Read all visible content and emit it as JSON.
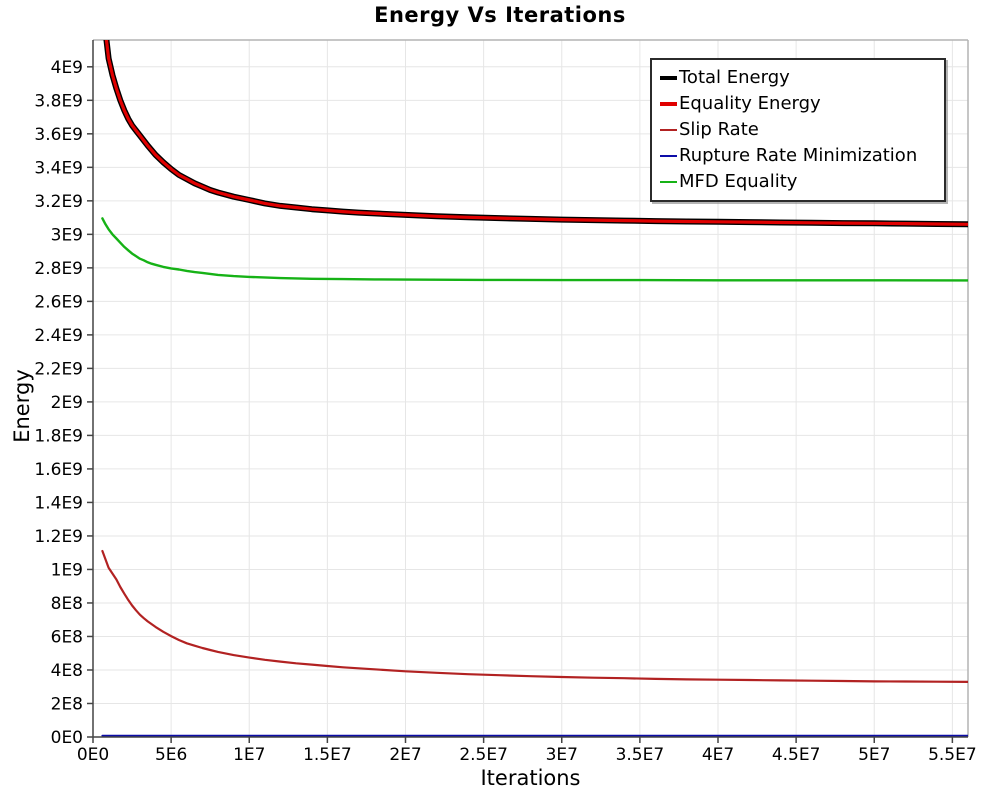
{
  "page": {
    "title": "Energy Vs Iterations"
  },
  "chart_data": {
    "type": "line",
    "title": "Energy Vs Iterations",
    "xlabel": "Iterations",
    "ylabel": "Energy",
    "xlim": [
      0,
      56000000.0
    ],
    "ylim": [
      0,
      4160000000.0
    ],
    "grid": true,
    "legend_position": "top-right",
    "x_ticks": {
      "values": [
        0,
        5000000.0,
        10000000.0,
        15000000.0,
        20000000.0,
        25000000.0,
        30000000.0,
        35000000.0,
        40000000.0,
        45000000.0,
        50000000.0,
        55000000.0
      ],
      "labels": [
        "0E0",
        "5E6",
        "1E7",
        "1.5E7",
        "2E7",
        "2.5E7",
        "3E7",
        "3.5E7",
        "4E7",
        "4.5E7",
        "5E7",
        "5.5E7"
      ]
    },
    "y_ticks": {
      "values": [
        0,
        200000000.0,
        400000000.0,
        600000000.0,
        800000000.0,
        1000000000.0,
        1200000000.0,
        1400000000.0,
        1600000000.0,
        1800000000.0,
        2000000000.0,
        2200000000.0,
        2400000000.0,
        2600000000.0,
        2800000000.0,
        3000000000.0,
        3200000000.0,
        3400000000.0,
        3600000000.0,
        3800000000.0,
        4000000000.0
      ],
      "labels": [
        "0E0",
        "2E8",
        "4E8",
        "6E8",
        "8E8",
        "1E9",
        "1.2E9",
        "1.4E9",
        "1.6E9",
        "1.8E9",
        "2E9",
        "2.2E9",
        "2.4E9",
        "2.6E9",
        "2.8E9",
        "3E9",
        "3.2E9",
        "3.4E9",
        "3.6E9",
        "3.8E9",
        "4E9"
      ]
    },
    "series": [
      {
        "id": "total-energy",
        "name": "Total Energy",
        "color": "#000000",
        "width": 6,
        "legend_thickness": 4,
        "x": [
          500000.0,
          750000.0,
          1000000.0,
          1250000.0,
          1500000.0,
          1750000.0,
          2000000.0,
          2250000.0,
          2500000.0,
          2750000.0,
          3000000.0,
          3500000.0,
          4000000.0,
          4500000.0,
          5000000.0,
          5500000.0,
          6000000.0,
          6500000.0,
          7000000.0,
          7500000.0,
          8000000.0,
          9000000.0,
          10000000.0,
          11000000.0,
          12000000.0,
          13000000.0,
          14000000.0,
          15000000.0,
          16000000.0,
          17000000.0,
          18000000.0,
          20000000.0,
          22000000.0,
          24000000.0,
          26000000.0,
          28000000.0,
          30000000.0,
          32000000.0,
          34000000.0,
          36000000.0,
          38000000.0,
          40000000.0,
          42000000.0,
          44000000.0,
          46000000.0,
          48000000.0,
          50000000.0,
          52000000.0,
          54000000.0,
          56000000.0
        ],
        "y": [
          4500000000.0,
          4250000000.0,
          4050000000.0,
          3950000000.0,
          3870000000.0,
          3800000000.0,
          3740000000.0,
          3690000000.0,
          3650000000.0,
          3620000000.0,
          3590000000.0,
          3530000000.0,
          3475000000.0,
          3430000000.0,
          3390000000.0,
          3355000000.0,
          3330000000.0,
          3305000000.0,
          3285000000.0,
          3265000000.0,
          3250000000.0,
          3225000000.0,
          3205000000.0,
          3185000000.0,
          3170000000.0,
          3160000000.0,
          3150000000.0,
          3143000000.0,
          3136000000.0,
          3130000000.0,
          3125000000.0,
          3116000000.0,
          3108000000.0,
          3102000000.0,
          3097000000.0,
          3092000000.0,
          3088000000.0,
          3085000000.0,
          3082000000.0,
          3079000000.0,
          3077000000.0,
          3075000000.0,
          3073000000.0,
          3071000000.0,
          3069000000.0,
          3067000000.0,
          3066000000.0,
          3064000000.0,
          3062000000.0,
          3060000000.0
        ]
      },
      {
        "id": "equality-energy",
        "name": "Equality Energy",
        "color": "#e00000",
        "width": 3.2,
        "legend_thickness": 4,
        "x": [
          500000.0,
          750000.0,
          1000000.0,
          1250000.0,
          1500000.0,
          1750000.0,
          2000000.0,
          2250000.0,
          2500000.0,
          2750000.0,
          3000000.0,
          3500000.0,
          4000000.0,
          4500000.0,
          5000000.0,
          5500000.0,
          6000000.0,
          6500000.0,
          7000000.0,
          7500000.0,
          8000000.0,
          9000000.0,
          10000000.0,
          11000000.0,
          12000000.0,
          13000000.0,
          14000000.0,
          15000000.0,
          16000000.0,
          17000000.0,
          18000000.0,
          20000000.0,
          22000000.0,
          24000000.0,
          26000000.0,
          28000000.0,
          30000000.0,
          32000000.0,
          34000000.0,
          36000000.0,
          38000000.0,
          40000000.0,
          42000000.0,
          44000000.0,
          46000000.0,
          48000000.0,
          50000000.0,
          52000000.0,
          54000000.0,
          56000000.0
        ],
        "y": [
          4500000000.0,
          4250000000.0,
          4050000000.0,
          3950000000.0,
          3870000000.0,
          3800000000.0,
          3740000000.0,
          3690000000.0,
          3650000000.0,
          3620000000.0,
          3590000000.0,
          3530000000.0,
          3475000000.0,
          3430000000.0,
          3390000000.0,
          3355000000.0,
          3330000000.0,
          3305000000.0,
          3285000000.0,
          3265000000.0,
          3250000000.0,
          3225000000.0,
          3205000000.0,
          3185000000.0,
          3170000000.0,
          3160000000.0,
          3150000000.0,
          3143000000.0,
          3136000000.0,
          3130000000.0,
          3125000000.0,
          3116000000.0,
          3108000000.0,
          3102000000.0,
          3097000000.0,
          3092000000.0,
          3088000000.0,
          3085000000.0,
          3082000000.0,
          3079000000.0,
          3077000000.0,
          3075000000.0,
          3073000000.0,
          3071000000.0,
          3069000000.0,
          3067000000.0,
          3066000000.0,
          3064000000.0,
          3062000000.0,
          3060000000.0
        ]
      },
      {
        "id": "slip-rate",
        "name": "Slip Rate",
        "color": "#b22222",
        "width": 2.2,
        "legend_thickness": 2,
        "x": [
          600000.0,
          800000.0,
          1000000.0,
          1250000.0,
          1500000.0,
          1750000.0,
          2000000.0,
          2250000.0,
          2500000.0,
          2750000.0,
          3000000.0,
          3250000.0,
          3500000.0,
          4000000.0,
          4500000.0,
          5000000.0,
          5500000.0,
          6000000.0,
          6500000.0,
          7000000.0,
          7500000.0,
          8000000.0,
          9000000.0,
          10000000.0,
          11000000.0,
          12000000.0,
          13000000.0,
          14000000.0,
          15000000.0,
          16000000.0,
          17000000.0,
          18000000.0,
          20000000.0,
          22000000.0,
          24000000.0,
          26000000.0,
          28000000.0,
          30000000.0,
          32000000.0,
          34000000.0,
          36000000.0,
          38000000.0,
          40000000.0,
          42000000.0,
          44000000.0,
          46000000.0,
          48000000.0,
          50000000.0,
          52000000.0,
          54000000.0,
          56000000.0
        ],
        "y": [
          1110000000.0,
          1060000000.0,
          1010000000.0,
          975000000.0,
          940000000.0,
          895000000.0,
          855000000.0,
          818000000.0,
          785000000.0,
          756000000.0,
          730000000.0,
          709000000.0,
          690000000.0,
          657000000.0,
          628000000.0,
          602000000.0,
          579000000.0,
          559000000.0,
          545000000.0,
          531000000.0,
          519000000.0,
          508000000.0,
          489000000.0,
          474000000.0,
          461000000.0,
          450000000.0,
          440000000.0,
          432000000.0,
          424000000.0,
          416000000.0,
          410000000.0,
          404000000.0,
          392000000.0,
          383000000.0,
          375000000.0,
          369000000.0,
          363000000.0,
          358000000.0,
          354000000.0,
          351000000.0,
          347000000.0,
          344000000.0,
          342000000.0,
          340000000.0,
          338000000.0,
          336000000.0,
          334000000.0,
          332000000.0,
          331000000.0,
          330000000.0,
          329000000.0
        ]
      },
      {
        "id": "rupture-rate-minimization",
        "name": "Rupture Rate Minimization",
        "color": "#0d0da8",
        "width": 2,
        "legend_thickness": 2,
        "x": [
          600000.0,
          56000000.0
        ],
        "y": [
          8000000.0,
          8000000.0
        ]
      },
      {
        "id": "mfd-equality",
        "name": "MFD Equality",
        "color": "#16b216",
        "width": 2.4,
        "legend_thickness": 2,
        "x": [
          600000.0,
          800000.0,
          1000000.0,
          1250000.0,
          1500000.0,
          1750000.0,
          2000000.0,
          2250000.0,
          2500000.0,
          2750000.0,
          3000000.0,
          3250000.0,
          3500000.0,
          3750000.0,
          4000000.0,
          4500000.0,
          5000000.0,
          5500000.0,
          6000000.0,
          6500000.0,
          7000000.0,
          8000000.0,
          9000000.0,
          10000000.0,
          12000000.0,
          14000000.0,
          16000000.0,
          18000000.0,
          20000000.0,
          25000000.0,
          30000000.0,
          35000000.0,
          40000000.0,
          45000000.0,
          50000000.0,
          56000000.0
        ],
        "y": [
          3095000000.0,
          3060000000.0,
          3030000000.0,
          3000000000.0,
          2975000000.0,
          2950000000.0,
          2925000000.0,
          2905000000.0,
          2885000000.0,
          2870000000.0,
          2855000000.0,
          2845000000.0,
          2833000000.0,
          2825000000.0,
          2818000000.0,
          2806000000.0,
          2797000000.0,
          2790000000.0,
          2782000000.0,
          2775000000.0,
          2770000000.0,
          2758000000.0,
          2751000000.0,
          2746000000.0,
          2739000000.0,
          2735000000.0,
          2733000000.0,
          2731000000.0,
          2730000000.0,
          2728000000.0,
          2727000000.0,
          2727000000.0,
          2726000000.0,
          2726000000.0,
          2726000000.0,
          2725000000.0
        ]
      }
    ]
  }
}
